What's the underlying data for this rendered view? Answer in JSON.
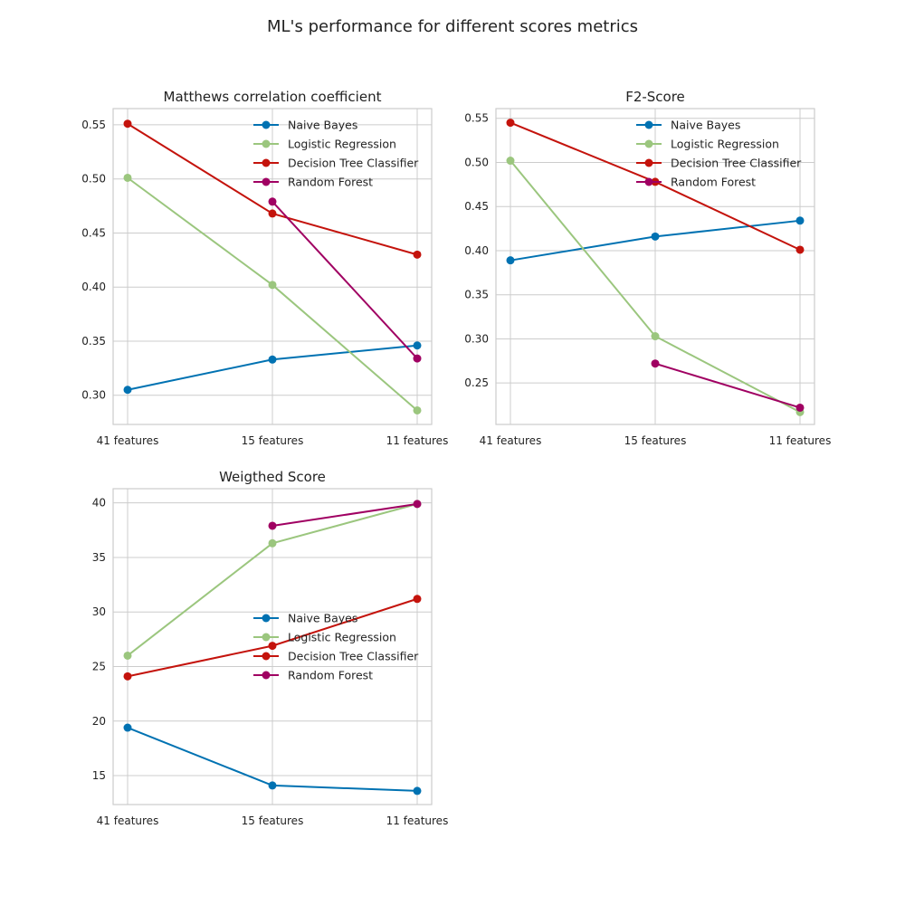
{
  "figure": {
    "title": "ML's performance for different scores metrics"
  },
  "chart_data": [
    {
      "type": "line",
      "title": "Matthews correlation coefficient",
      "xlabel": "",
      "ylabel": "",
      "categories": [
        "41 features",
        "15 features",
        "11 features"
      ],
      "ylim": [
        0.273,
        0.565
      ],
      "yticks": [
        0.3,
        0.35,
        0.4,
        0.45,
        0.5,
        0.55
      ],
      "ytick_labels": [
        "0.30",
        "0.35",
        "0.40",
        "0.45",
        "0.50",
        "0.55"
      ],
      "grid": true,
      "legend": "top-right",
      "series": [
        {
          "name": "Naive Bayes",
          "values": [
            0.305,
            0.333,
            0.346
          ],
          "color": "#0072B2"
        },
        {
          "name": "Logistic Regression",
          "values": [
            0.501,
            0.402,
            0.286
          ],
          "color": "#9BC67E"
        },
        {
          "name": "Decision Tree Classifier",
          "values": [
            0.551,
            0.468,
            0.43
          ],
          "color": "#C4130C"
        },
        {
          "name": "Random Forest",
          "values": [
            null,
            0.479,
            0.334
          ],
          "color": "#A00062"
        }
      ]
    },
    {
      "type": "line",
      "title": "F2-Score",
      "xlabel": "",
      "ylabel": "",
      "categories": [
        "41 features",
        "15 features",
        "11 features"
      ],
      "ylim": [
        0.203,
        0.561
      ],
      "yticks": [
        0.25,
        0.3,
        0.35,
        0.4,
        0.45,
        0.5,
        0.55
      ],
      "ytick_labels": [
        "0.25",
        "0.30",
        "0.35",
        "0.40",
        "0.45",
        "0.50",
        "0.55"
      ],
      "grid": true,
      "legend": "top-right",
      "series": [
        {
          "name": "Naive Bayes",
          "values": [
            0.389,
            0.416,
            0.434
          ],
          "color": "#0072B2"
        },
        {
          "name": "Logistic Regression",
          "values": [
            0.502,
            0.303,
            0.217
          ],
          "color": "#9BC67E"
        },
        {
          "name": "Decision Tree Classifier",
          "values": [
            0.545,
            0.478,
            0.401
          ],
          "color": "#C4130C"
        },
        {
          "name": "Random Forest",
          "values": [
            null,
            0.272,
            0.222
          ],
          "color": "#A00062"
        }
      ]
    },
    {
      "type": "line",
      "title": "Weigthed Score",
      "xlabel": "",
      "ylabel": "",
      "categories": [
        "41 features",
        "15 features",
        "11 features"
      ],
      "ylim": [
        12.35,
        41.3
      ],
      "yticks": [
        15,
        20,
        25,
        30,
        35,
        40
      ],
      "ytick_labels": [
        "15",
        "20",
        "25",
        "30",
        "35",
        "40"
      ],
      "grid": true,
      "legend": "center-right",
      "series": [
        {
          "name": "Naive Bayes",
          "values": [
            19.4,
            14.1,
            13.6
          ],
          "color": "#0072B2"
        },
        {
          "name": "Logistic Regression",
          "values": [
            26.0,
            36.3,
            39.9
          ],
          "color": "#9BC67E"
        },
        {
          "name": "Decision Tree Classifier",
          "values": [
            24.1,
            26.9,
            31.2
          ],
          "color": "#C4130C"
        },
        {
          "name": "Random Forest",
          "values": [
            null,
            37.9,
            39.9
          ],
          "color": "#A00062"
        }
      ]
    }
  ]
}
